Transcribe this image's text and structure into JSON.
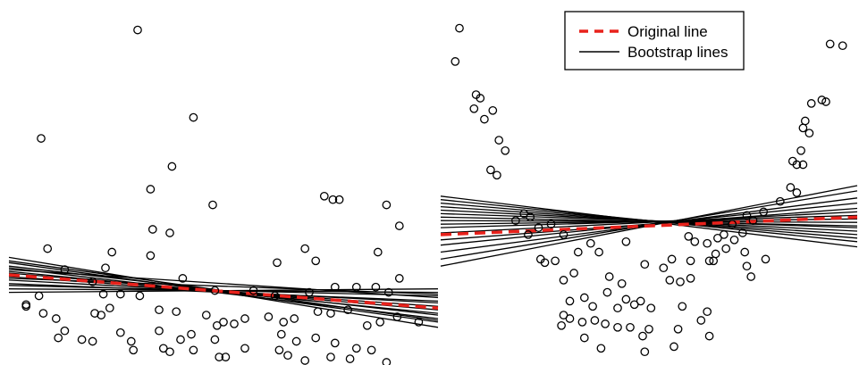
{
  "chart_data": [
    {
      "type": "scatter",
      "panel": "left",
      "grid": false,
      "axes_visible": false,
      "xlim": [
        0,
        100
      ],
      "ylim": [
        0,
        100
      ],
      "points": [
        [
          30.0,
          95.0
        ],
        [
          7.5,
          64.0
        ],
        [
          43.0,
          70.0
        ],
        [
          38.0,
          56.0
        ],
        [
          33.0,
          49.5
        ],
        [
          47.5,
          45.0
        ],
        [
          33.5,
          38.0
        ],
        [
          37.5,
          37.0
        ],
        [
          9.0,
          32.5
        ],
        [
          24.0,
          31.5
        ],
        [
          73.5,
          47.5
        ],
        [
          75.5,
          46.5
        ],
        [
          77.0,
          46.5
        ],
        [
          88.0,
          45.0
        ],
        [
          91.0,
          39.0
        ],
        [
          86.0,
          31.5
        ],
        [
          69.0,
          32.5
        ],
        [
          71.5,
          29.0
        ],
        [
          62.5,
          28.5
        ],
        [
          22.5,
          27.0
        ],
        [
          13.0,
          26.5
        ],
        [
          33.0,
          30.5
        ],
        [
          91.0,
          24.0
        ],
        [
          40.5,
          24.0
        ],
        [
          4.0,
          16.5
        ],
        [
          7.0,
          19.0
        ],
        [
          19.5,
          23.0
        ],
        [
          22.0,
          19.5
        ],
        [
          26.0,
          19.5
        ],
        [
          30.5,
          19.0
        ],
        [
          48.0,
          20.5
        ],
        [
          57.0,
          20.5
        ],
        [
          62.0,
          19.0
        ],
        [
          70.0,
          20.0
        ],
        [
          76.0,
          21.5
        ],
        [
          81.0,
          21.5
        ],
        [
          85.5,
          21.5
        ],
        [
          88.5,
          20.0
        ],
        [
          4.0,
          16.0
        ],
        [
          8.0,
          14.0
        ],
        [
          11.0,
          12.5
        ],
        [
          20.0,
          14.0
        ],
        [
          21.5,
          13.5
        ],
        [
          23.5,
          15.5
        ],
        [
          35.0,
          15.0
        ],
        [
          39.0,
          14.5
        ],
        [
          46.0,
          13.5
        ],
        [
          48.5,
          10.5
        ],
        [
          50.0,
          11.5
        ],
        [
          52.5,
          11.0
        ],
        [
          55.0,
          12.5
        ],
        [
          60.5,
          13.0
        ],
        [
          64.0,
          11.5
        ],
        [
          66.5,
          12.5
        ],
        [
          72.0,
          14.5
        ],
        [
          75.0,
          14.0
        ],
        [
          79.0,
          15.0
        ],
        [
          83.5,
          10.5
        ],
        [
          86.5,
          11.5
        ],
        [
          90.5,
          13.0
        ],
        [
          95.5,
          11.5
        ],
        [
          13.0,
          9.0
        ],
        [
          17.0,
          6.5
        ],
        [
          19.5,
          6.0
        ],
        [
          26.0,
          8.5
        ],
        [
          35.0,
          9.0
        ],
        [
          40.0,
          6.5
        ],
        [
          42.5,
          8.0
        ],
        [
          48.0,
          6.5
        ],
        [
          55.0,
          4.0
        ],
        [
          63.5,
          8.0
        ],
        [
          67.0,
          6.0
        ],
        [
          71.5,
          7.0
        ],
        [
          76.0,
          5.5
        ],
        [
          81.0,
          4.0
        ],
        [
          84.5,
          3.5
        ],
        [
          11.5,
          7.0
        ],
        [
          28.5,
          6.0
        ],
        [
          36.0,
          4.0
        ],
        [
          43.0,
          3.5
        ],
        [
          49.0,
          1.5
        ],
        [
          65.0,
          2.0
        ],
        [
          69.0,
          0.5
        ],
        [
          79.5,
          1.0
        ],
        [
          88.0,
          0.0
        ],
        [
          29.0,
          3.5
        ],
        [
          37.5,
          3.0
        ],
        [
          50.5,
          1.5
        ],
        [
          63.0,
          3.5
        ],
        [
          75.0,
          1.5
        ]
      ],
      "original_line": [
        [
          0,
          25.0
        ],
        [
          100,
          15.5
        ]
      ],
      "bootstrap_lines": [
        [
          [
            0,
            30.0
          ],
          [
            100,
            10.0
          ]
        ],
        [
          [
            0,
            28.5
          ],
          [
            100,
            11.5
          ]
        ],
        [
          [
            0,
            27.0
          ],
          [
            100,
            12.5
          ]
        ],
        [
          [
            0,
            26.0
          ],
          [
            100,
            14.0
          ]
        ],
        [
          [
            0,
            25.5
          ],
          [
            100,
            15.0
          ]
        ],
        [
          [
            0,
            24.5
          ],
          [
            100,
            16.0
          ]
        ],
        [
          [
            0,
            23.5
          ],
          [
            100,
            17.0
          ]
        ],
        [
          [
            0,
            22.5
          ],
          [
            100,
            17.5
          ]
        ],
        [
          [
            0,
            22.0
          ],
          [
            100,
            19.0
          ]
        ],
        [
          [
            0,
            21.0
          ],
          [
            100,
            20.0
          ]
        ],
        [
          [
            0,
            20.0
          ],
          [
            100,
            21.0
          ]
        ],
        [
          [
            0,
            26.5
          ],
          [
            100,
            18.5
          ]
        ],
        [
          [
            0,
            27.5
          ],
          [
            100,
            13.5
          ]
        ],
        [
          [
            0,
            24.0
          ],
          [
            100,
            19.5
          ]
        ],
        [
          [
            0,
            29.0
          ],
          [
            100,
            12.0
          ]
        ]
      ]
    },
    {
      "type": "scatter",
      "panel": "right",
      "grid": false,
      "axes_visible": false,
      "xlim": [
        0,
        100
      ],
      "ylim": [
        0,
        100
      ],
      "points": [
        [
          4.5,
          95.5
        ],
        [
          3.5,
          86.0
        ],
        [
          93.5,
          91.0
        ],
        [
          96.5,
          90.5
        ],
        [
          8.5,
          76.5
        ],
        [
          9.5,
          75.5
        ],
        [
          8.0,
          72.5
        ],
        [
          12.5,
          72.0
        ],
        [
          10.5,
          69.5
        ],
        [
          14.0,
          63.5
        ],
        [
          15.5,
          60.5
        ],
        [
          12.0,
          55.0
        ],
        [
          13.5,
          53.5
        ],
        [
          89.0,
          74.0
        ],
        [
          91.5,
          75.0
        ],
        [
          92.5,
          74.5
        ],
        [
          87.5,
          69.0
        ],
        [
          87.0,
          67.0
        ],
        [
          88.5,
          65.5
        ],
        [
          86.5,
          60.5
        ],
        [
          84.5,
          57.5
        ],
        [
          85.5,
          56.5
        ],
        [
          87.0,
          56.5
        ],
        [
          84.0,
          50.0
        ],
        [
          85.5,
          48.5
        ],
        [
          81.5,
          46.0
        ],
        [
          77.5,
          43.0
        ],
        [
          73.5,
          42.0
        ],
        [
          75.0,
          40.5
        ],
        [
          70.0,
          39.5
        ],
        [
          72.5,
          37.0
        ],
        [
          68.0,
          36.5
        ],
        [
          66.5,
          35.5
        ],
        [
          70.5,
          35.0
        ],
        [
          64.0,
          34.0
        ],
        [
          68.5,
          32.5
        ],
        [
          66.0,
          31.0
        ],
        [
          64.5,
          29.0
        ],
        [
          73.0,
          31.5
        ],
        [
          20.0,
          42.5
        ],
        [
          21.5,
          41.5
        ],
        [
          18.0,
          40.5
        ],
        [
          26.5,
          39.5
        ],
        [
          23.5,
          38.5
        ],
        [
          21.0,
          36.5
        ],
        [
          29.5,
          36.5
        ],
        [
          36.0,
          34.0
        ],
        [
          24.0,
          29.5
        ],
        [
          25.0,
          28.5
        ],
        [
          27.5,
          29.0
        ],
        [
          33.0,
          31.5
        ],
        [
          38.0,
          31.5
        ],
        [
          44.5,
          34.5
        ],
        [
          59.5,
          36.0
        ],
        [
          61.0,
          34.5
        ],
        [
          65.5,
          29.0
        ],
        [
          73.5,
          27.5
        ],
        [
          74.5,
          24.5
        ],
        [
          78.0,
          29.5
        ],
        [
          55.5,
          29.5
        ],
        [
          60.0,
          29.0
        ],
        [
          49.0,
          28.0
        ],
        [
          53.5,
          27.0
        ],
        [
          55.0,
          23.5
        ],
        [
          57.5,
          23.0
        ],
        [
          60.0,
          24.0
        ],
        [
          32.0,
          25.5
        ],
        [
          29.5,
          23.5
        ],
        [
          40.5,
          24.5
        ],
        [
          43.5,
          22.5
        ],
        [
          40.0,
          20.0
        ],
        [
          34.5,
          18.5
        ],
        [
          31.0,
          17.5
        ],
        [
          36.5,
          16.0
        ],
        [
          44.5,
          18.0
        ],
        [
          46.5,
          16.5
        ],
        [
          48.0,
          17.5
        ],
        [
          42.5,
          15.5
        ],
        [
          50.5,
          15.5
        ],
        [
          58.0,
          16.0
        ],
        [
          64.0,
          14.5
        ],
        [
          62.5,
          12.0
        ],
        [
          29.5,
          13.5
        ],
        [
          31.0,
          12.5
        ],
        [
          34.0,
          11.5
        ],
        [
          37.0,
          12.0
        ],
        [
          39.5,
          11.0
        ],
        [
          42.5,
          10.0
        ],
        [
          45.5,
          10.0
        ],
        [
          50.0,
          9.5
        ],
        [
          57.0,
          9.5
        ],
        [
          64.5,
          7.5
        ],
        [
          29.0,
          10.5
        ],
        [
          34.5,
          7.0
        ],
        [
          48.5,
          7.5
        ],
        [
          38.5,
          4.0
        ],
        [
          49.0,
          3.0
        ],
        [
          56.0,
          4.5
        ]
      ],
      "original_line": [
        [
          0,
          36.5
        ],
        [
          100,
          41.5
        ]
      ],
      "bootstrap_lines": [
        [
          [
            0,
            47.5
          ],
          [
            100,
            33.0
          ]
        ],
        [
          [
            0,
            46.5
          ],
          [
            100,
            34.5
          ]
        ],
        [
          [
            0,
            45.5
          ],
          [
            100,
            35.5
          ]
        ],
        [
          [
            0,
            44.5
          ],
          [
            100,
            36.5
          ]
        ],
        [
          [
            0,
            43.5
          ],
          [
            100,
            37.5
          ]
        ],
        [
          [
            0,
            42.5
          ],
          [
            100,
            38.5
          ]
        ],
        [
          [
            0,
            41.5
          ],
          [
            100,
            39.0
          ]
        ],
        [
          [
            0,
            40.5
          ],
          [
            100,
            40.0
          ]
        ],
        [
          [
            0,
            39.5
          ],
          [
            100,
            41.0
          ]
        ],
        [
          [
            0,
            38.5
          ],
          [
            100,
            42.0
          ]
        ],
        [
          [
            0,
            37.0
          ],
          [
            100,
            43.0
          ]
        ],
        [
          [
            0,
            35.0
          ],
          [
            100,
            44.0
          ]
        ],
        [
          [
            0,
            33.5
          ],
          [
            100,
            45.5
          ]
        ],
        [
          [
            0,
            31.5
          ],
          [
            100,
            47.0
          ]
        ],
        [
          [
            0,
            29.5
          ],
          [
            100,
            49.0
          ]
        ],
        [
          [
            0,
            27.5
          ],
          [
            100,
            50.5
          ]
        ]
      ]
    }
  ],
  "legend": {
    "position": "top-right",
    "entries": [
      {
        "label": "Original line",
        "color": "#e8221c",
        "style": "dashed"
      },
      {
        "label": "Bootstrap lines",
        "color": "#000000",
        "style": "solid"
      }
    ]
  },
  "colors": {
    "original_line": "#e8221c",
    "bootstrap_line": "#000000",
    "marker": "#000000",
    "background": "#ffffff"
  }
}
